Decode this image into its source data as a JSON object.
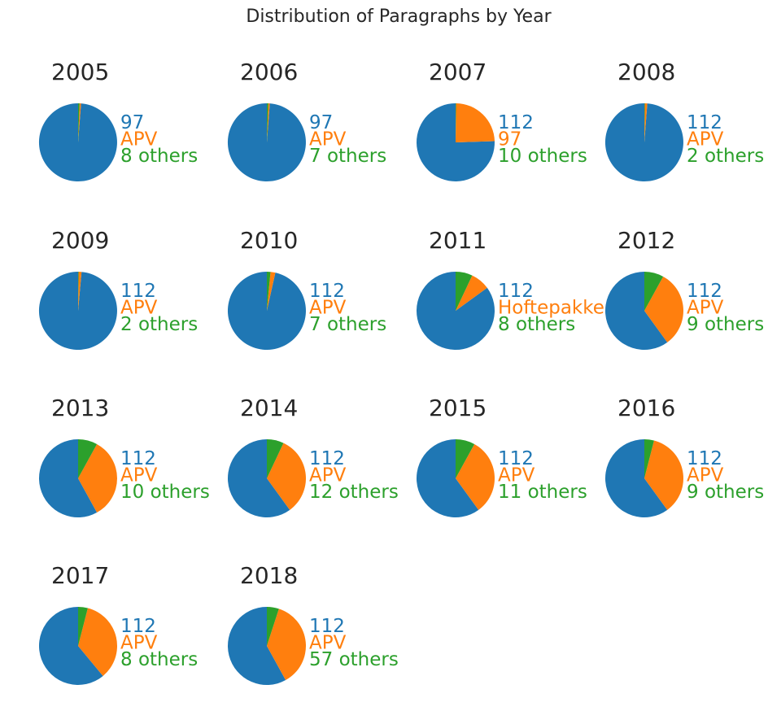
{
  "title": "Distribution of Paragraphs by Year",
  "colors": {
    "first": "#1f77b4",
    "second": "#ff7f0e",
    "others": "#2ca02c"
  },
  "chart_data": [
    {
      "type": "pie",
      "title": "2005",
      "labels": [
        "97",
        "APV",
        "8 others"
      ],
      "values": [
        98.8,
        0.6,
        0.6
      ]
    },
    {
      "type": "pie",
      "title": "2006",
      "labels": [
        "97",
        "APV",
        "7 others"
      ],
      "values": [
        98.8,
        0.6,
        0.6
      ]
    },
    {
      "type": "pie",
      "title": "2007",
      "labels": [
        "112",
        "97",
        "10 others"
      ],
      "values": [
        75.5,
        24.3,
        0.2
      ]
    },
    {
      "type": "pie",
      "title": "2008",
      "labels": [
        "112",
        "APV",
        "2 others"
      ],
      "values": [
        98.8,
        1.0,
        0.2
      ]
    },
    {
      "type": "pie",
      "title": "2009",
      "labels": [
        "112",
        "APV",
        "2 others"
      ],
      "values": [
        98.6,
        1.2,
        0.2
      ]
    },
    {
      "type": "pie",
      "title": "2010",
      "labels": [
        "112",
        "APV",
        "7 others"
      ],
      "values": [
        96.5,
        2.0,
        1.5
      ]
    },
    {
      "type": "pie",
      "title": "2011",
      "labels": [
        "112",
        "Hoftepakke",
        "8 others"
      ],
      "values": [
        85.0,
        8.0,
        7.0
      ]
    },
    {
      "type": "pie",
      "title": "2012",
      "labels": [
        "112",
        "APV",
        "9 others"
      ],
      "values": [
        60.0,
        32.0,
        8.0
      ]
    },
    {
      "type": "pie",
      "title": "2013",
      "labels": [
        "112",
        "APV",
        "10 others"
      ],
      "values": [
        58.0,
        34.0,
        8.0
      ]
    },
    {
      "type": "pie",
      "title": "2014",
      "labels": [
        "112",
        "APV",
        "12 others"
      ],
      "values": [
        60.0,
        33.0,
        7.0
      ]
    },
    {
      "type": "pie",
      "title": "2015",
      "labels": [
        "112",
        "APV",
        "11 others"
      ],
      "values": [
        60.0,
        32.0,
        8.0
      ]
    },
    {
      "type": "pie",
      "title": "2016",
      "labels": [
        "112",
        "APV",
        "9 others"
      ],
      "values": [
        60.0,
        36.0,
        4.0
      ]
    },
    {
      "type": "pie",
      "title": "2017",
      "labels": [
        "112",
        "APV",
        "8 others"
      ],
      "values": [
        61.0,
        35.0,
        4.0
      ]
    },
    {
      "type": "pie",
      "title": "2018",
      "labels": [
        "112",
        "APV",
        "57 others"
      ],
      "values": [
        58.0,
        37.0,
        5.0
      ]
    }
  ]
}
